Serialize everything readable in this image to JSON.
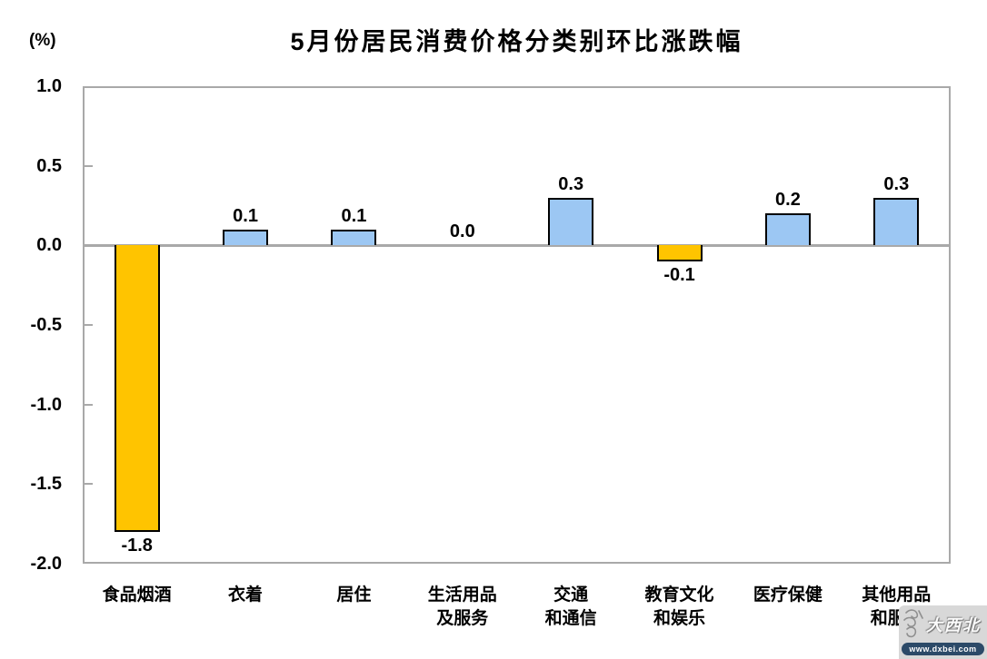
{
  "page": {
    "background": "#ffffff"
  },
  "chart_data": {
    "type": "bar",
    "title": "5月份居民消费价格分类别环比涨跌幅",
    "unit_label": "(%)",
    "categories": [
      "食品烟酒",
      "衣着",
      "居住",
      "生活用品\n及服务",
      "交通\n和通信",
      "教育文化\n和娱乐",
      "医疗保健",
      "其他用品\n和服务"
    ],
    "values": [
      -1.8,
      0.1,
      0.1,
      0.0,
      0.3,
      -0.1,
      0.2,
      0.3
    ],
    "value_labels": [
      "-1.8",
      "0.1",
      "0.1",
      "0.0",
      "0.3",
      "-0.1",
      "0.2",
      "0.3"
    ],
    "y_ticks": [
      "1.0",
      "0.5",
      "0.0",
      "-0.5",
      "-1.0",
      "-1.5",
      "-2.0"
    ],
    "ylim": [
      -2.0,
      1.0
    ],
    "grid": false,
    "legend": "none",
    "colors": {
      "positive_bar": "#9cc7f3",
      "negative_bar": "#ffc400",
      "bar_border": "#000000",
      "axis_gray": "#a9a9a9",
      "text": "#000000"
    }
  },
  "watermark": {
    "site_name": "大西北",
    "site_url": "www.dxbei.com",
    "logo_icon": "dxbei-animal-logo"
  }
}
